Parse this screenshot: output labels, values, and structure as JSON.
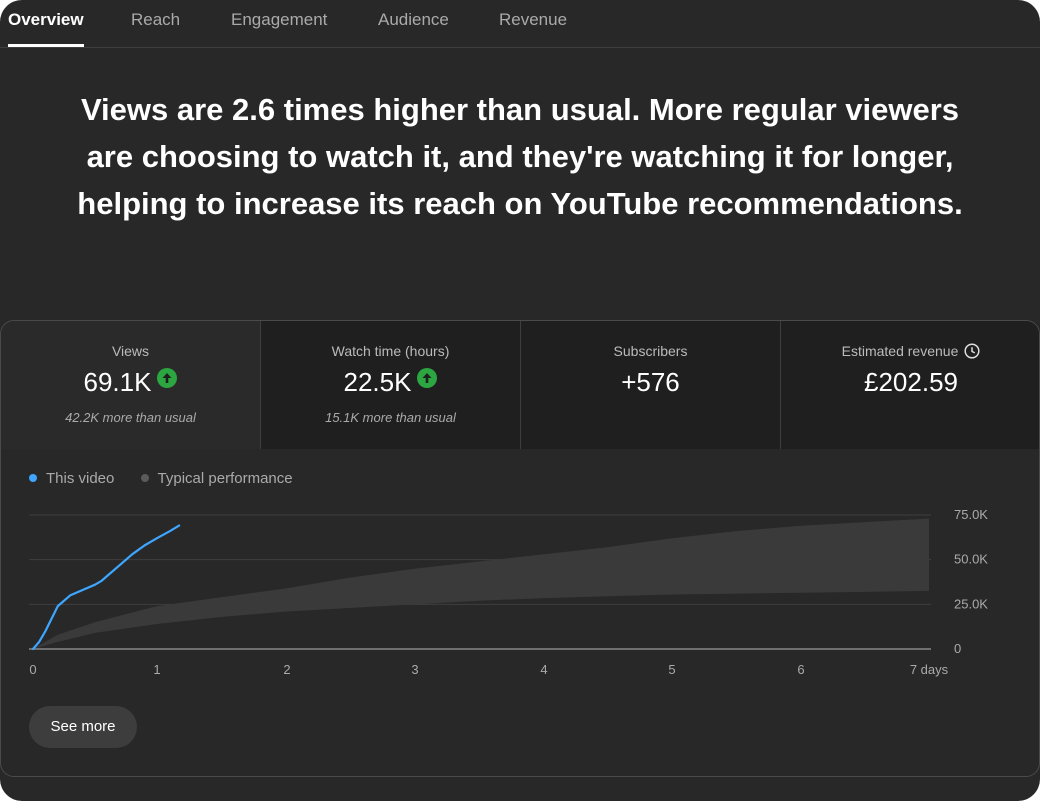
{
  "tabs": [
    {
      "label": "Overview",
      "active": true
    },
    {
      "label": "Reach",
      "active": false
    },
    {
      "label": "Engagement",
      "active": false
    },
    {
      "label": "Audience",
      "active": false
    },
    {
      "label": "Revenue",
      "active": false
    }
  ],
  "headline": "Views are 2.6 times higher than usual. More regular viewers are choosing to watch it, and they're watching it for longer, helping to increase its reach on YouTube recommendations.",
  "metrics": [
    {
      "label": "Views",
      "value": "69.1K",
      "note": "42.2K more than usual",
      "icon": "arrow-up-icon"
    },
    {
      "label": "Watch time (hours)",
      "value": "22.5K",
      "note": "15.1K more than usual",
      "icon": "arrow-up-icon"
    },
    {
      "label": "Subscribers",
      "value": "+576",
      "note": ""
    },
    {
      "label": "Estimated revenue",
      "value": "£202.59",
      "note": "",
      "icon": "clock-icon"
    }
  ],
  "see_more_label": "See more",
  "colors": {
    "this_video": "#3ea6ff",
    "typical_band": "#3a3a3a",
    "trend_up": "#2ba640"
  },
  "chart_data": {
    "type": "line",
    "legend": [
      "This video",
      "Typical performance"
    ],
    "legend_placement": "top-left",
    "x_ticks": [
      "0",
      "1",
      "2",
      "3",
      "4",
      "5",
      "6",
      "7 days"
    ],
    "y_ticks": [
      "0",
      "25.0K",
      "50.0K",
      "75.0K"
    ],
    "xlim": [
      0,
      7
    ],
    "ylim": [
      0,
      75000
    ],
    "grid": true,
    "series": [
      {
        "name": "This video",
        "kind": "line",
        "x": [
          0,
          0.05,
          0.1,
          0.15,
          0.2,
          0.25,
          0.3,
          0.4,
          0.5,
          0.55,
          0.6,
          0.7,
          0.8,
          0.9,
          1.0,
          1.1,
          1.17
        ],
        "y": [
          0,
          4000,
          10000,
          17000,
          24000,
          27000,
          30000,
          33000,
          36000,
          38000,
          41000,
          47000,
          53000,
          58000,
          62000,
          66000,
          69100
        ]
      },
      {
        "name": "Typical performance",
        "kind": "band",
        "x": [
          0,
          0.2,
          0.5,
          1,
          1.5,
          2,
          2.5,
          3,
          3.5,
          4,
          4.5,
          5,
          5.5,
          6,
          6.5,
          7
        ],
        "y_low": [
          0,
          4000,
          9000,
          14000,
          18000,
          21000,
          23000,
          25000,
          27000,
          28500,
          29500,
          30500,
          31000,
          31500,
          32000,
          32500
        ],
        "y_high": [
          0,
          8000,
          15000,
          24000,
          29000,
          34000,
          40000,
          45000,
          49000,
          53000,
          57000,
          62000,
          66000,
          69000,
          71000,
          73000
        ]
      }
    ]
  }
}
